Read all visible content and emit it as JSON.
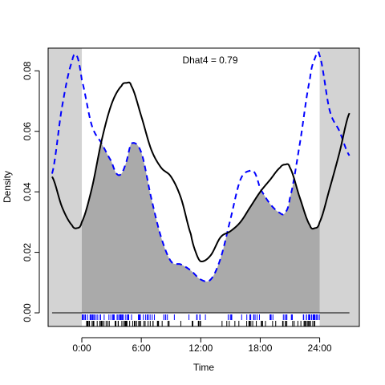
{
  "chart_data": {
    "type": "line",
    "title": "",
    "xlabel": "Time",
    "ylabel": "Density",
    "annotation": "Dhat4 = 0.79",
    "x_tick_labels": [
      "0:00",
      "6:00",
      "12:00",
      "18:00",
      "24:00"
    ],
    "x_tick_hours": [
      0,
      6,
      12,
      18,
      24
    ],
    "y_tick_labels": [
      "0.00",
      "0.02",
      "0.04",
      "0.06",
      "0.08"
    ],
    "y_tick_values": [
      0,
      0.02,
      0.04,
      0.06,
      0.08
    ],
    "xlim": [
      -3.4,
      28.0
    ],
    "ylim": [
      -0.0045,
      0.0875
    ],
    "day_range": [
      0,
      24
    ],
    "grid": false,
    "colors": {
      "background_shade": "#d3d3d3",
      "overlap_fill": "#aaaaaa",
      "series_a": "#000000",
      "series_b": "#0000ff"
    },
    "series": [
      {
        "style": "solid",
        "color": "#000000",
        "x": [
          -3,
          -2,
          -1,
          -0.5,
          0,
          1,
          2,
          3,
          4,
          4.5,
          5,
          6,
          7,
          8,
          9,
          10,
          11,
          11.5,
          12,
          13,
          14,
          15,
          16,
          17,
          18,
          19,
          20,
          20.5,
          21,
          22,
          23,
          23.5,
          24,
          25,
          26,
          27
        ],
        "y": [
          0.045,
          0.035,
          0.029,
          0.028,
          0.03,
          0.041,
          0.057,
          0.069,
          0.075,
          0.076,
          0.075,
          0.065,
          0.054,
          0.048,
          0.045,
          0.038,
          0.026,
          0.02,
          0.017,
          0.019,
          0.025,
          0.027,
          0.03,
          0.035,
          0.04,
          0.044,
          0.048,
          0.049,
          0.048,
          0.038,
          0.029,
          0.028,
          0.03,
          0.041,
          0.053,
          0.066
        ]
      },
      {
        "style": "dashed",
        "color": "#0000ff",
        "x": [
          -3,
          -2,
          -1,
          -0.5,
          0,
          1,
          2,
          3,
          3.5,
          4,
          4.5,
          5,
          6,
          7,
          8,
          9,
          10,
          11,
          12,
          13,
          14,
          15,
          16,
          17,
          17.5,
          18,
          19,
          20,
          20.5,
          21,
          22,
          23,
          23.5,
          24,
          25,
          26,
          27
        ],
        "y": [
          0.046,
          0.068,
          0.083,
          0.085,
          0.077,
          0.062,
          0.056,
          0.05,
          0.046,
          0.046,
          0.05,
          0.056,
          0.053,
          0.038,
          0.025,
          0.017,
          0.016,
          0.014,
          0.011,
          0.011,
          0.018,
          0.031,
          0.044,
          0.047,
          0.046,
          0.041,
          0.036,
          0.033,
          0.033,
          0.038,
          0.056,
          0.077,
          0.084,
          0.085,
          0.067,
          0.06,
          0.052
        ]
      }
    ]
  }
}
